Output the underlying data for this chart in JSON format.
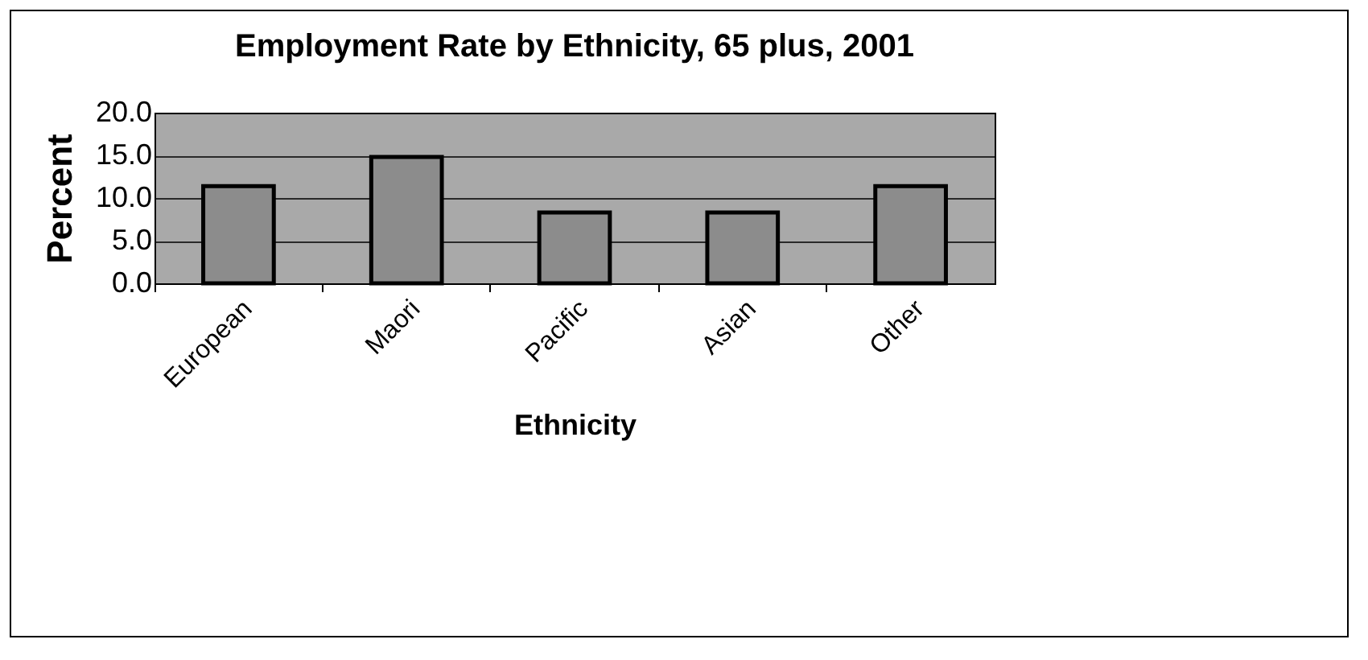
{
  "chart_data": {
    "type": "bar",
    "title": "Employment Rate by Ethnicity, 65 plus, 2001",
    "xlabel": "Ethnicity",
    "ylabel": "Percent",
    "categories": [
      "European",
      "Maori",
      "Pacific",
      "Asian",
      "Other"
    ],
    "values": [
      11.4,
      14.8,
      8.3,
      8.3,
      11.4
    ],
    "color": "#8c8c8c",
    "ylim": [
      0,
      20
    ],
    "yticks": [
      {
        "value": 0,
        "label": "0.0"
      },
      {
        "value": 5,
        "label": "5.0"
      },
      {
        "value": 10,
        "label": "10.0"
      },
      {
        "value": 15,
        "label": "15.0"
      },
      {
        "value": 20,
        "label": "20.0"
      }
    ],
    "grid": "y"
  }
}
